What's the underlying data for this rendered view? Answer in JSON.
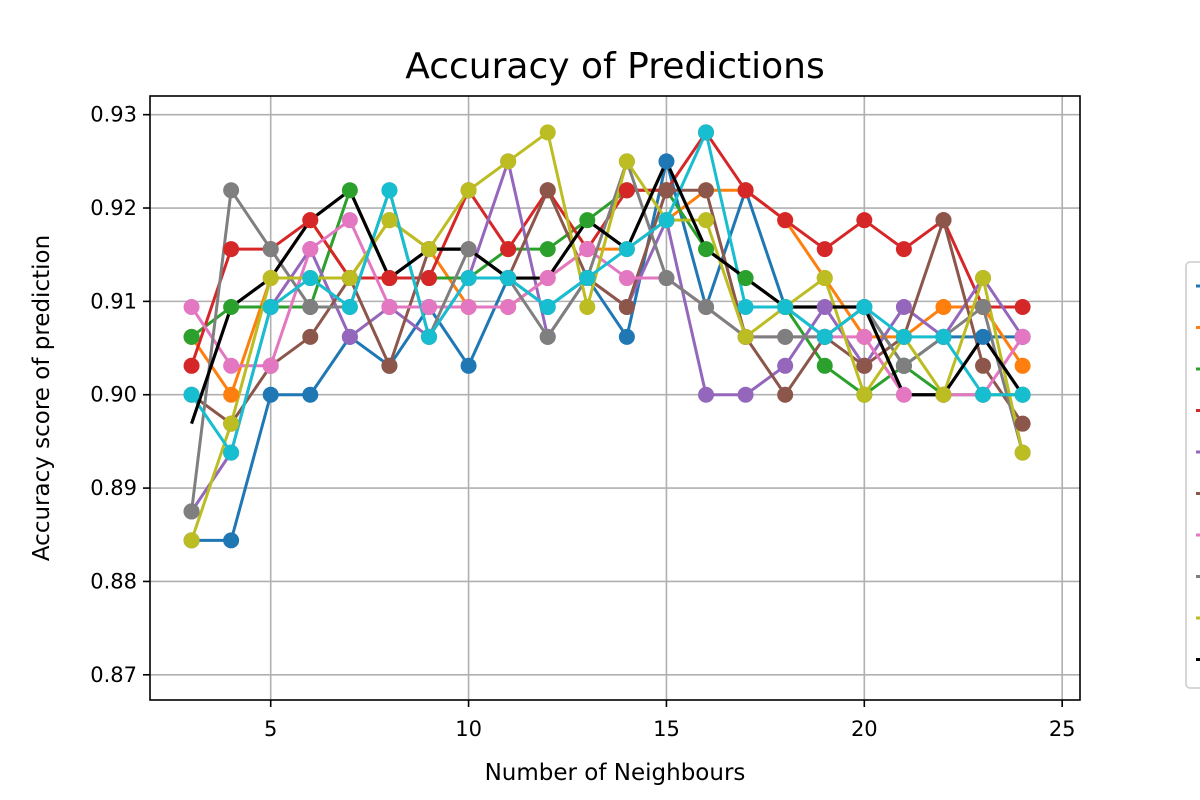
{
  "chart_data": {
    "type": "line",
    "title": "Accuracy of Predictions",
    "xlabel": "Number of Neighbours",
    "ylabel": "Accuracy score of prediction",
    "xlim": [
      1.95,
      25.45
    ],
    "ylim": [
      0.8673,
      0.932
    ],
    "xticks": [
      5,
      10,
      15,
      20,
      25
    ],
    "xtick_labels": [
      "5",
      "10",
      "15",
      "20",
      "25"
    ],
    "yticks": [
      0.87,
      0.88,
      0.89,
      0.9,
      0.91,
      0.92,
      0.93
    ],
    "ytick_labels": [
      "0.87",
      "0.88",
      "0.89",
      "0.90",
      "0.91",
      "0.92",
      "0.93"
    ],
    "grid": true,
    "legend_position": "right",
    "x": [
      3,
      4,
      5,
      6,
      7,
      8,
      9,
      10,
      11,
      12,
      13,
      14,
      15,
      16,
      17,
      18,
      19,
      20,
      21,
      22,
      23,
      24
    ],
    "series": [
      {
        "color": "#1f77b4",
        "markers": true,
        "values": [
          0.8844,
          0.8844,
          0.9,
          0.9,
          0.9062,
          0.9031,
          0.9094,
          0.9031,
          0.9125,
          0.9094,
          0.9125,
          0.9062,
          0.925,
          0.9094,
          0.9219,
          0.9094,
          0.9062,
          0.9094,
          0.9031,
          0.9062,
          0.9062,
          0.9062
        ]
      },
      {
        "color": "#ff7f0e",
        "markers": true,
        "values": [
          0.9062,
          0.9,
          0.9125,
          0.9187,
          0.9125,
          0.9187,
          0.9156,
          0.9094,
          0.9094,
          0.9125,
          0.9156,
          0.9156,
          0.9187,
          0.9219,
          0.9219,
          0.9187,
          0.9125,
          0.9062,
          0.9062,
          0.9094,
          0.9094,
          0.9031
        ]
      },
      {
        "color": "#2ca02c",
        "markers": true,
        "values": [
          0.9062,
          0.9094,
          0.9094,
          0.9094,
          0.9219,
          0.9125,
          0.9125,
          0.9125,
          0.9156,
          0.9156,
          0.9187,
          0.9219,
          0.9219,
          0.9156,
          0.9125,
          0.9094,
          0.9031,
          0.9,
          0.9031,
          0.9,
          0.9,
          0.9
        ]
      },
      {
        "color": "#d62728",
        "markers": true,
        "values": [
          0.9031,
          0.9156,
          0.9156,
          0.9187,
          0.9125,
          0.9125,
          0.9125,
          0.9219,
          0.9156,
          0.9219,
          0.9156,
          0.9219,
          0.9219,
          0.9281,
          0.9219,
          0.9187,
          0.9156,
          0.9187,
          0.9156,
          0.9187,
          0.9094,
          0.9094
        ]
      },
      {
        "color": "#9467bd",
        "markers": true,
        "values": [
          0.8875,
          0.8938,
          0.9094,
          0.9156,
          0.9062,
          0.9094,
          0.9062,
          0.9125,
          0.925,
          0.9062,
          0.9125,
          0.9094,
          0.9187,
          0.9,
          0.9,
          0.9031,
          0.9094,
          0.9031,
          0.9094,
          0.9062,
          0.9125,
          0.9062
        ]
      },
      {
        "color": "#8c564b",
        "markers": true,
        "values": [
          0.9,
          0.8969,
          0.9031,
          0.9062,
          0.9125,
          0.9031,
          0.9156,
          0.9156,
          0.9125,
          0.9219,
          0.9125,
          0.9094,
          0.9219,
          0.9219,
          0.9062,
          0.9,
          0.9062,
          0.9031,
          0.9062,
          0.9187,
          0.9031,
          0.8969
        ]
      },
      {
        "color": "#e377c2",
        "markers": true,
        "values": [
          0.9094,
          0.9031,
          0.9031,
          0.9156,
          0.9187,
          0.9094,
          0.9094,
          0.9094,
          0.9094,
          0.9125,
          0.9156,
          0.9125,
          0.9125,
          0.9094,
          0.9062,
          0.9062,
          0.9062,
          0.9062,
          0.9,
          0.9,
          0.9,
          0.9062
        ]
      },
      {
        "color": "#7f7f7f",
        "markers": true,
        "values": [
          0.8875,
          0.9219,
          0.9156,
          0.9094,
          0.9094,
          0.9219,
          0.9062,
          0.9156,
          0.9125,
          0.9062,
          0.9125,
          0.925,
          0.9125,
          0.9094,
          0.9062,
          0.9062,
          0.9062,
          0.9094,
          0.9031,
          0.9062,
          0.9094,
          0.8938
        ]
      },
      {
        "color": "#bcbd22",
        "markers": true,
        "values": [
          0.8844,
          0.8969,
          0.9125,
          0.9125,
          0.9125,
          0.9187,
          0.9156,
          0.9219,
          0.925,
          0.9281,
          0.9094,
          0.925,
          0.9187,
          0.9187,
          0.9062,
          0.9094,
          0.9125,
          0.9,
          0.9062,
          0.9,
          0.9125,
          0.8938
        ]
      },
      {
        "color": "#17becf",
        "markers": true,
        "values": [
          0.9,
          0.8938,
          0.9094,
          0.9125,
          0.9094,
          0.9219,
          0.9062,
          0.9125,
          0.9125,
          0.9094,
          0.9125,
          0.9156,
          0.9187,
          0.9281,
          0.9094,
          0.9094,
          0.9062,
          0.9094,
          0.9062,
          0.9062,
          0.9,
          0.9
        ]
      },
      {
        "color": "#000000",
        "markers": false,
        "values": [
          0.8969,
          0.9094,
          0.9125,
          0.9187,
          0.9219,
          0.9125,
          0.9156,
          0.9156,
          0.9125,
          0.9125,
          0.9187,
          0.9156,
          0.925,
          0.9156,
          0.9125,
          0.9094,
          0.9094,
          0.9094,
          0.9,
          0.9,
          0.9062,
          0.9
        ]
      }
    ]
  }
}
